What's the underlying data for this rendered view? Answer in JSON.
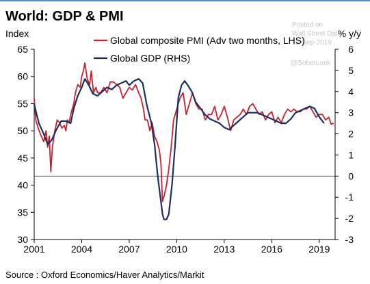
{
  "chart_data": {
    "type": "line",
    "title": "World: GDP & PMI",
    "left_axis": {
      "label": "Index",
      "ylim": [
        30,
        65
      ],
      "ticks": [
        30,
        35,
        40,
        45,
        50,
        55,
        60,
        65
      ]
    },
    "right_axis": {
      "label": "% y/y",
      "ylim": [
        -3,
        6
      ],
      "ticks": [
        -3,
        -2,
        -1,
        0,
        1,
        2,
        3,
        4,
        5,
        6
      ]
    },
    "x_axis": {
      "xlim": [
        2001,
        2020
      ],
      "ticks": [
        "2001",
        "2004",
        "2007",
        "2010",
        "2013",
        "2016",
        "2019"
      ]
    },
    "reference_line": {
      "axis": "right",
      "value": 0
    },
    "legend_position": "top-center",
    "series": [
      {
        "name": "Global composite PMI (Adv two months, LHS)",
        "axis": "left",
        "color": "#c8202f",
        "x": [
          2001.0,
          2001.1,
          2001.25,
          2001.45,
          2001.6,
          2001.75,
          2001.85,
          2001.95,
          2002.05,
          2002.15,
          2002.3,
          2002.45,
          2002.6,
          2002.75,
          2002.9,
          2003.0,
          2003.1,
          2003.2,
          2003.35,
          2003.5,
          2003.6,
          2003.75,
          2003.9,
          2004.0,
          2004.1,
          2004.2,
          2004.35,
          2004.5,
          2004.6,
          2004.75,
          2004.9,
          2005.0,
          2005.2,
          2005.4,
          2005.6,
          2005.8,
          2006.0,
          2006.2,
          2006.4,
          2006.6,
          2006.8,
          2007.0,
          2007.2,
          2007.4,
          2007.6,
          2007.75,
          2007.9,
          2008.0,
          2008.15,
          2008.3,
          2008.45,
          2008.6,
          2008.75,
          2008.9,
          2009.0,
          2009.1,
          2009.2,
          2009.35,
          2009.5,
          2009.65,
          2009.8,
          2010.0,
          2010.2,
          2010.4,
          2010.6,
          2010.8,
          2011.0,
          2011.2,
          2011.4,
          2011.6,
          2011.8,
          2012.0,
          2012.2,
          2012.4,
          2012.6,
          2012.8,
          2013.0,
          2013.2,
          2013.4,
          2013.6,
          2013.8,
          2014.0,
          2014.2,
          2014.4,
          2014.6,
          2014.8,
          2015.0,
          2015.2,
          2015.4,
          2015.6,
          2015.8,
          2016.0,
          2016.2,
          2016.4,
          2016.6,
          2016.8,
          2017.0,
          2017.2,
          2017.4,
          2017.6,
          2017.8,
          2018.0,
          2018.2,
          2018.4,
          2018.6,
          2018.8,
          2019.0,
          2019.2,
          2019.4,
          2019.6,
          2019.75,
          2019.9
        ],
        "values": [
          56,
          52,
          50.5,
          49,
          48,
          50,
          47,
          49,
          42.5,
          47,
          50,
          52,
          51.5,
          50.5,
          51,
          50,
          52,
          51.5,
          53.5,
          55,
          57,
          58.5,
          58,
          60,
          61,
          62.5,
          59.5,
          58.5,
          61,
          57,
          58,
          57,
          57,
          58,
          57,
          59,
          59,
          58.5,
          58,
          56,
          57,
          58,
          57.5,
          58.5,
          57,
          56,
          54,
          52,
          52,
          50,
          51.5,
          49,
          48,
          46.5,
          44,
          37,
          38,
          40,
          43,
          47,
          52,
          54,
          56,
          57,
          53,
          55,
          57,
          55,
          54,
          54,
          52,
          53,
          53,
          54.5,
          52,
          53,
          54.5,
          52.5,
          50,
          52,
          52.5,
          53,
          54,
          53,
          54.5,
          55,
          54,
          53,
          53.5,
          52,
          53,
          53.5,
          51.5,
          52.5,
          51.5,
          53,
          54,
          53.5,
          54,
          53.5,
          53.5,
          54,
          54,
          54.5,
          53.5,
          52.5,
          53,
          53,
          52,
          52.5,
          51.2,
          51.4
        ]
      },
      {
        "name": "Global GDP (RHS)",
        "axis": "right",
        "color": "#1a2e5f",
        "x": [
          2001.0,
          2001.3,
          2001.6,
          2001.85,
          2002.1,
          2002.4,
          2002.7,
          2003.0,
          2003.3,
          2003.5,
          2003.75,
          2004.0,
          2004.2,
          2004.45,
          2004.7,
          2005.0,
          2005.3,
          2005.6,
          2005.9,
          2006.2,
          2006.5,
          2006.8,
          2007.0,
          2007.3,
          2007.6,
          2007.85,
          2008.1,
          2008.4,
          2008.6,
          2008.8,
          2009.0,
          2009.1,
          2009.2,
          2009.35,
          2009.5,
          2009.7,
          2009.9,
          2010.1,
          2010.3,
          2010.5,
          2010.7,
          2010.95,
          2011.2,
          2011.5,
          2011.8,
          2012.1,
          2012.4,
          2012.7,
          2013.0,
          2013.3,
          2013.6,
          2013.9,
          2014.2,
          2014.5,
          2014.8,
          2015.1,
          2015.4,
          2015.7,
          2016.0,
          2016.3,
          2016.6,
          2016.9,
          2017.2,
          2017.5,
          2017.8,
          2018.1,
          2018.4,
          2018.7,
          2019.0,
          2019.3
        ],
        "values": [
          3.4,
          2.5,
          2.0,
          1.5,
          1.7,
          2.2,
          2.6,
          2.6,
          2.5,
          3.2,
          3.8,
          4.2,
          4.6,
          4.3,
          3.9,
          3.8,
          4.0,
          4.2,
          4.1,
          4.3,
          4.4,
          4.5,
          4.3,
          4.5,
          4.6,
          4.4,
          3.4,
          2.5,
          1.5,
          0.0,
          -1.2,
          -1.8,
          -2.05,
          -2.05,
          -1.8,
          -0.4,
          1.5,
          3.7,
          4.3,
          4.5,
          4.3,
          4.0,
          3.5,
          3.2,
          2.9,
          2.7,
          2.6,
          2.5,
          2.3,
          2.2,
          2.4,
          2.6,
          2.8,
          3.0,
          3.0,
          3.0,
          2.9,
          2.8,
          2.7,
          2.6,
          2.5,
          2.5,
          2.7,
          3.0,
          3.1,
          3.2,
          3.3,
          3.2,
          2.8,
          2.5
        ]
      }
    ],
    "source": "Source : Oxford Economics/Haver Analytics/Markit",
    "watermark": [
      "Posted on",
      "Wall Street Daily",
      "12-Sep-2019",
      "@SoberLook"
    ]
  }
}
